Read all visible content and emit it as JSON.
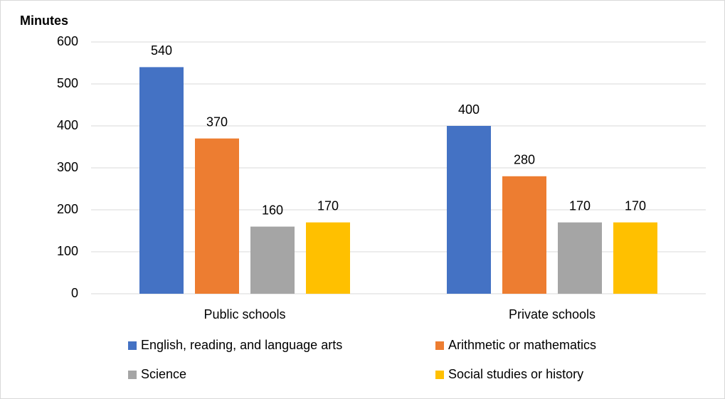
{
  "chart_data": {
    "type": "bar",
    "y_label": "Minutes",
    "categories": [
      "Public schools",
      "Private schools"
    ],
    "series": [
      {
        "name": "English, reading, and language arts",
        "color": "#4472c4",
        "values": [
          540,
          400
        ]
      },
      {
        "name": "Arithmetic or mathematics",
        "color": "#ed7d31",
        "values": [
          370,
          280
        ]
      },
      {
        "name": "Science",
        "color": "#a5a5a5",
        "values": [
          160,
          170
        ]
      },
      {
        "name": "Social studies or history",
        "color": "#ffc000",
        "values": [
          170,
          170
        ]
      }
    ],
    "ylim": [
      0,
      600
    ],
    "yticks": [
      0,
      100,
      200,
      300,
      400,
      500,
      600
    ],
    "grid": true
  }
}
